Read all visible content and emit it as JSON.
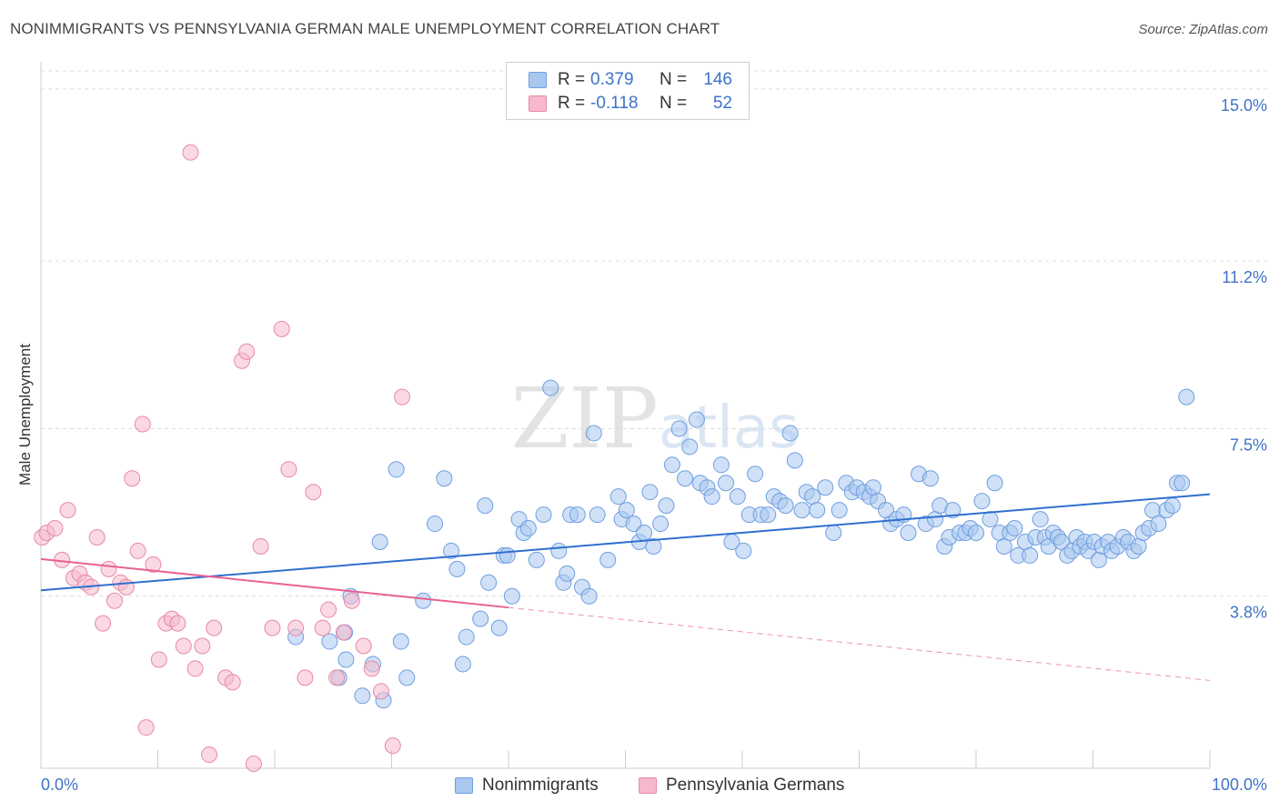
{
  "header": {
    "title": "NONIMMIGRANTS VS PENNSYLVANIA GERMAN MALE UNEMPLOYMENT CORRELATION CHART",
    "source": "Source: ZipAtlas.com"
  },
  "legend": {
    "rows": [
      {
        "r_label": "R =",
        "r_value": "0.379",
        "n_label": "N =",
        "n_value": "146"
      },
      {
        "r_label": "R =",
        "r_value": "-0.118",
        "n_label": "N =",
        "n_value": "52"
      }
    ]
  },
  "bottom_legend": {
    "items": [
      "Nonimmigrants",
      "Pennsylvania Germans"
    ]
  },
  "watermark": "ZIPatlas",
  "colors": {
    "blue_fill": "#a9c8f0",
    "blue_stroke": "#6f9ee0",
    "blue_line": "#2f6fd0",
    "pink_fill": "#f6b9cc",
    "pink_stroke": "#e889a7",
    "pink_line": "#e8628f",
    "axis_text": "#3f73c7",
    "grid": "#dddddd"
  },
  "chart_data": {
    "type": "scatter",
    "title": "NONIMMIGRANTS VS PENNSYLVANIA GERMAN MALE UNEMPLOYMENT CORRELATION CHART",
    "xlabel": "",
    "ylabel": "Male Unemployment",
    "xlim": [
      0,
      100
    ],
    "ylim": [
      0,
      15.4
    ],
    "x_tick_labels": [
      "0.0%",
      "100.0%"
    ],
    "y_ticks": [
      3.8,
      7.5,
      11.2,
      15.0
    ],
    "y_tick_labels": [
      "3.8%",
      "7.5%",
      "11.2%",
      "15.0%"
    ],
    "grid": "horizontal dashed",
    "legend_position": "top-center",
    "series": [
      {
        "name": "Nonimmigrants",
        "r": 0.379,
        "n": 146,
        "trend": {
          "x": [
            0,
            100
          ],
          "y": [
            3.93,
            6.05
          ]
        },
        "points": [
          [
            21.8,
            2.9
          ],
          [
            24.7,
            2.8
          ],
          [
            25.5,
            2.0
          ],
          [
            26.0,
            3.0
          ],
          [
            26.1,
            2.4
          ],
          [
            26.5,
            3.8
          ],
          [
            27.5,
            1.6
          ],
          [
            28.4,
            2.3
          ],
          [
            29.0,
            5.0
          ],
          [
            29.3,
            1.5
          ],
          [
            30.4,
            6.6
          ],
          [
            30.8,
            2.8
          ],
          [
            31.3,
            2.0
          ],
          [
            32.7,
            3.7
          ],
          [
            33.7,
            5.4
          ],
          [
            34.5,
            6.4
          ],
          [
            35.1,
            4.8
          ],
          [
            35.6,
            4.4
          ],
          [
            36.1,
            2.3
          ],
          [
            36.4,
            2.9
          ],
          [
            37.6,
            3.3
          ],
          [
            38.0,
            5.8
          ],
          [
            38.3,
            4.1
          ],
          [
            39.2,
            3.1
          ],
          [
            39.6,
            4.7
          ],
          [
            39.9,
            4.7
          ],
          [
            40.3,
            3.8
          ],
          [
            40.9,
            5.5
          ],
          [
            41.3,
            5.2
          ],
          [
            41.7,
            5.3
          ],
          [
            42.4,
            4.6
          ],
          [
            43.0,
            5.6
          ],
          [
            43.6,
            8.4
          ],
          [
            44.3,
            4.8
          ],
          [
            44.7,
            4.1
          ],
          [
            45.0,
            4.3
          ],
          [
            45.3,
            5.6
          ],
          [
            45.9,
            5.6
          ],
          [
            46.3,
            4.0
          ],
          [
            46.9,
            3.8
          ],
          [
            47.3,
            7.4
          ],
          [
            47.6,
            5.6
          ],
          [
            48.5,
            4.6
          ],
          [
            49.4,
            6.0
          ],
          [
            49.7,
            5.5
          ],
          [
            50.1,
            5.7
          ],
          [
            50.7,
            5.4
          ],
          [
            51.2,
            5.0
          ],
          [
            51.6,
            5.2
          ],
          [
            52.1,
            6.1
          ],
          [
            52.4,
            4.9
          ],
          [
            53.0,
            5.4
          ],
          [
            53.5,
            5.8
          ],
          [
            54.0,
            6.7
          ],
          [
            54.6,
            7.5
          ],
          [
            55.1,
            6.4
          ],
          [
            55.5,
            7.1
          ],
          [
            56.1,
            7.7
          ],
          [
            56.4,
            6.3
          ],
          [
            57.0,
            6.2
          ],
          [
            57.4,
            6.0
          ],
          [
            58.2,
            6.7
          ],
          [
            58.6,
            6.3
          ],
          [
            59.1,
            5.0
          ],
          [
            59.6,
            6.0
          ],
          [
            60.1,
            4.8
          ],
          [
            60.6,
            5.6
          ],
          [
            61.1,
            6.5
          ],
          [
            61.6,
            5.6
          ],
          [
            62.2,
            5.6
          ],
          [
            62.7,
            6.0
          ],
          [
            63.2,
            5.9
          ],
          [
            63.7,
            5.8
          ],
          [
            64.1,
            7.4
          ],
          [
            64.5,
            6.8
          ],
          [
            65.1,
            5.7
          ],
          [
            65.5,
            6.1
          ],
          [
            66.0,
            6.0
          ],
          [
            66.4,
            5.7
          ],
          [
            67.1,
            6.2
          ],
          [
            67.8,
            5.2
          ],
          [
            68.3,
            5.7
          ],
          [
            68.9,
            6.3
          ],
          [
            69.4,
            6.1
          ],
          [
            69.8,
            6.2
          ],
          [
            70.4,
            6.1
          ],
          [
            70.9,
            6.0
          ],
          [
            71.2,
            6.2
          ],
          [
            71.6,
            5.9
          ],
          [
            72.3,
            5.7
          ],
          [
            72.7,
            5.4
          ],
          [
            73.2,
            5.5
          ],
          [
            73.8,
            5.6
          ],
          [
            74.2,
            5.2
          ],
          [
            75.1,
            6.5
          ],
          [
            75.7,
            5.4
          ],
          [
            76.1,
            6.4
          ],
          [
            76.5,
            5.5
          ],
          [
            76.9,
            5.8
          ],
          [
            77.3,
            4.9
          ],
          [
            77.7,
            5.1
          ],
          [
            78.0,
            5.7
          ],
          [
            78.6,
            5.2
          ],
          [
            79.1,
            5.2
          ],
          [
            79.5,
            5.3
          ],
          [
            80.0,
            5.2
          ],
          [
            80.5,
            5.9
          ],
          [
            81.2,
            5.5
          ],
          [
            81.6,
            6.3
          ],
          [
            82.0,
            5.2
          ],
          [
            82.4,
            4.9
          ],
          [
            82.9,
            5.2
          ],
          [
            83.3,
            5.3
          ],
          [
            83.6,
            4.7
          ],
          [
            84.2,
            5.0
          ],
          [
            84.6,
            4.7
          ],
          [
            85.1,
            5.1
          ],
          [
            85.5,
            5.5
          ],
          [
            85.9,
            5.1
          ],
          [
            86.2,
            4.9
          ],
          [
            86.6,
            5.2
          ],
          [
            87.0,
            5.1
          ],
          [
            87.3,
            5.0
          ],
          [
            87.8,
            4.7
          ],
          [
            88.2,
            4.8
          ],
          [
            88.6,
            5.1
          ],
          [
            88.9,
            4.9
          ],
          [
            89.3,
            5.0
          ],
          [
            89.6,
            4.8
          ],
          [
            90.1,
            5.0
          ],
          [
            90.5,
            4.6
          ],
          [
            90.8,
            4.9
          ],
          [
            91.3,
            5.0
          ],
          [
            91.6,
            4.8
          ],
          [
            92.1,
            4.9
          ],
          [
            92.6,
            5.1
          ],
          [
            93.0,
            5.0
          ],
          [
            93.5,
            4.8
          ],
          [
            93.9,
            4.9
          ],
          [
            94.3,
            5.2
          ],
          [
            94.8,
            5.3
          ],
          [
            95.1,
            5.7
          ],
          [
            95.6,
            5.4
          ],
          [
            96.3,
            5.7
          ],
          [
            96.8,
            5.8
          ],
          [
            97.2,
            6.3
          ],
          [
            97.6,
            6.3
          ],
          [
            98.0,
            8.2
          ]
        ]
      },
      {
        "name": "Pennsylvania Germans",
        "r": -0.118,
        "n": 52,
        "trend": {
          "x": [
            0,
            40
          ],
          "y": [
            4.62,
            3.55
          ]
        },
        "trend_extension": {
          "x": [
            40,
            100
          ],
          "y": [
            3.55,
            1.94
          ]
        },
        "points": [
          [
            0.1,
            5.1
          ],
          [
            0.5,
            5.2
          ],
          [
            1.2,
            5.3
          ],
          [
            1.8,
            4.6
          ],
          [
            2.3,
            5.7
          ],
          [
            2.8,
            4.2
          ],
          [
            3.3,
            4.3
          ],
          [
            3.8,
            4.1
          ],
          [
            4.3,
            4.0
          ],
          [
            4.8,
            5.1
          ],
          [
            5.3,
            3.2
          ],
          [
            5.8,
            4.4
          ],
          [
            6.3,
            3.7
          ],
          [
            6.8,
            4.1
          ],
          [
            7.3,
            4.0
          ],
          [
            7.8,
            6.4
          ],
          [
            8.3,
            4.8
          ],
          [
            8.7,
            7.6
          ],
          [
            9.0,
            0.9
          ],
          [
            9.6,
            4.5
          ],
          [
            10.1,
            2.4
          ],
          [
            10.7,
            3.2
          ],
          [
            11.2,
            3.3
          ],
          [
            11.7,
            3.2
          ],
          [
            12.2,
            2.7
          ],
          [
            12.8,
            13.6
          ],
          [
            13.2,
            2.2
          ],
          [
            13.8,
            2.7
          ],
          [
            14.4,
            0.3
          ],
          [
            14.8,
            3.1
          ],
          [
            15.8,
            2.0
          ],
          [
            16.4,
            1.9
          ],
          [
            17.2,
            9.0
          ],
          [
            17.6,
            9.2
          ],
          [
            18.2,
            0.1
          ],
          [
            18.8,
            4.9
          ],
          [
            19.8,
            3.1
          ],
          [
            20.6,
            9.7
          ],
          [
            21.2,
            6.6
          ],
          [
            21.8,
            3.1
          ],
          [
            22.6,
            2.0
          ],
          [
            23.3,
            6.1
          ],
          [
            24.1,
            3.1
          ],
          [
            24.6,
            3.5
          ],
          [
            25.3,
            2.0
          ],
          [
            25.9,
            3.0
          ],
          [
            26.6,
            3.7
          ],
          [
            27.6,
            2.7
          ],
          [
            28.3,
            2.2
          ],
          [
            29.1,
            1.7
          ],
          [
            30.1,
            0.5
          ],
          [
            30.9,
            8.2
          ]
        ]
      }
    ]
  }
}
